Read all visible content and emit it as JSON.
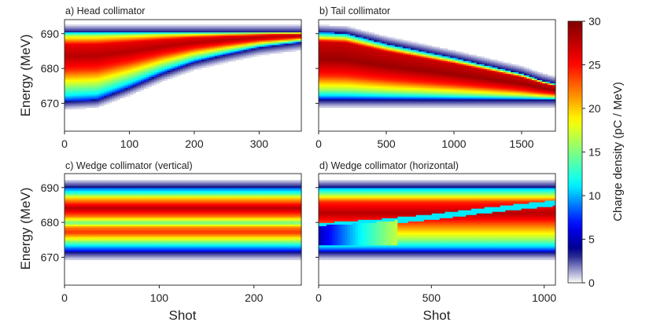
{
  "chart_data": {
    "type": "heatmap",
    "colorbar": {
      "label": "Charge density (pC / MeV)",
      "range": [
        0,
        30
      ],
      "ticks": [
        0,
        5,
        10,
        15,
        20,
        25,
        30
      ],
      "colormap": "jet-to-white",
      "colors": [
        "#ffffff",
        "#00007f",
        "#0000ff",
        "#00ffff",
        "#ffff00",
        "#ff0000",
        "#7f0000"
      ]
    },
    "shared_ylabel": "Energy (MeV)",
    "shared_xlabel": "Shot",
    "panels": [
      {
        "title": "a) Head collimator",
        "xlim": [
          0,
          365
        ],
        "xticks": [
          0,
          100,
          200,
          300
        ],
        "ylim": [
          662,
          694
        ],
        "yticks": [
          670,
          680,
          690
        ],
        "beam": {
          "upper_edge": [
            [
              0,
              690.3
            ],
            [
              365,
              690.3
            ]
          ],
          "lower_edge": [
            [
              0,
              670.5
            ],
            [
              50,
              671.0
            ],
            [
              100,
              674.5
            ],
            [
              150,
              678.5
            ],
            [
              200,
              681.8
            ],
            [
              250,
              684.0
            ],
            [
              300,
              686.0
            ],
            [
              365,
              687.5
            ]
          ],
          "profile": [
            {
              "e": 0.0,
              "v": 10
            },
            {
              "e": 0.05,
              "v": 17
            },
            {
              "e": 0.18,
              "v": 26
            },
            {
              "e": 0.35,
              "v": 28
            },
            {
              "e": 0.55,
              "v": 24
            },
            {
              "e": 0.75,
              "v": 17
            },
            {
              "e": 0.92,
              "v": 11
            },
            {
              "e": 1.0,
              "v": 7
            }
          ]
        }
      },
      {
        "title": "b) Tail collimator",
        "xlim": [
          0,
          1750
        ],
        "xticks": [
          0,
          500,
          1000,
          1500
        ],
        "ylim": [
          662,
          694
        ],
        "yticks": [
          670,
          680,
          690
        ],
        "beam": {
          "upper_edge": [
            [
              0,
              690.3
            ],
            [
              200,
              690.0
            ],
            [
              500,
              687.0
            ],
            [
              1000,
              683.0
            ],
            [
              1500,
              678.5
            ],
            [
              1650,
              676.5
            ],
            [
              1750,
              675.5
            ]
          ],
          "lower_edge": [
            [
              0,
              671.0
            ],
            [
              1750,
              671.0
            ]
          ],
          "profile": [
            {
              "e": 0.0,
              "v": 9
            },
            {
              "e": 0.06,
              "v": 16
            },
            {
              "e": 0.14,
              "v": 27
            },
            {
              "e": 0.4,
              "v": 29
            },
            {
              "e": 0.65,
              "v": 24
            },
            {
              "e": 0.85,
              "v": 16
            },
            {
              "e": 0.95,
              "v": 10
            },
            {
              "e": 1.0,
              "v": 6
            }
          ]
        }
      },
      {
        "title": "c) Wedge collimator (vertical)",
        "xlim": [
          0,
          250
        ],
        "xticks": [
          0,
          100,
          200
        ],
        "ylim": [
          662,
          694
        ],
        "yticks": [
          670,
          680,
          690
        ],
        "beam": {
          "upper_edge": [
            [
              0,
              690.0
            ],
            [
              250,
              690.0
            ]
          ],
          "lower_edge": [
            [
              0,
              671.5
            ],
            [
              250,
              671.5
            ]
          ],
          "profile": [
            {
              "e": 0.0,
              "v": 8
            },
            {
              "e": 0.08,
              "v": 12
            },
            {
              "e": 0.17,
              "v": 20
            },
            {
              "e": 0.32,
              "v": 28
            },
            {
              "e": 0.45,
              "v": 22
            },
            {
              "e": 0.55,
              "v": 14
            },
            {
              "e": 0.62,
              "v": 22
            },
            {
              "e": 0.7,
              "v": 24
            },
            {
              "e": 0.8,
              "v": 18
            },
            {
              "e": 0.92,
              "v": 10
            },
            {
              "e": 1.0,
              "v": 6
            }
          ]
        }
      },
      {
        "title": "d) Wedge collimator (horizontal)",
        "xlim": [
          0,
          1050
        ],
        "xticks": [
          0,
          500,
          1000
        ],
        "ylim": [
          662,
          694
        ],
        "yticks": [
          670,
          680,
          690
        ],
        "beam": {
          "upper_edge": [
            [
              0,
              690.0
            ],
            [
              1050,
              690.0
            ]
          ],
          "lower_edge": [
            [
              0,
              671.5
            ],
            [
              1050,
              671.5
            ]
          ],
          "split_line": [
            [
              0,
              679.0
            ],
            [
              250,
              680.0
            ],
            [
              500,
              681.5
            ],
            [
              750,
              683.5
            ],
            [
              1050,
              685.5
            ]
          ],
          "profile": [
            {
              "e": 0.0,
              "v": 9
            },
            {
              "e": 0.1,
              "v": 15
            },
            {
              "e": 0.22,
              "v": 24
            },
            {
              "e": 0.4,
              "v": 28
            },
            {
              "e": 0.6,
              "v": 22
            },
            {
              "e": 0.8,
              "v": 16
            },
            {
              "e": 0.93,
              "v": 10
            },
            {
              "e": 1.0,
              "v": 6
            }
          ]
        }
      }
    ]
  }
}
